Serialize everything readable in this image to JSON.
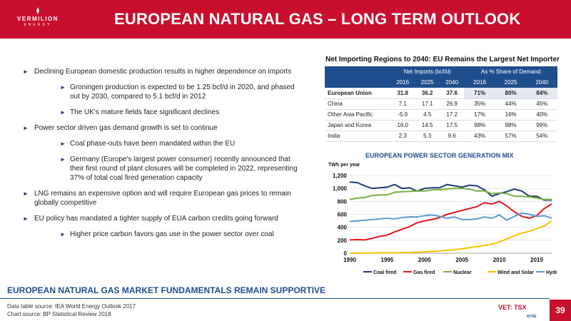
{
  "brand": {
    "name": "VERMILION",
    "sub": "ENERGY"
  },
  "title": "EUROPEAN NATURAL GAS – LONG TERM OUTLOOK",
  "bullets": [
    {
      "level": 1,
      "text": "Declining European domestic production results in higher dependence on imports"
    },
    {
      "level": 2,
      "text": "Groningen production is expected to be 1.25 bcf/d in 2020, and phased out by 2030, compared to 5.1 bcf/d in 2012"
    },
    {
      "level": 2,
      "text": "The UK's mature fields face significant declines"
    },
    {
      "level": 1,
      "text": "Power sector driven gas demand growth is set to continue"
    },
    {
      "level": 2,
      "text": "Coal phase-outs have been mandated within the EU"
    },
    {
      "level": 2,
      "text": "Germany (Europe's largest power consumer) recently announced that their first round of plant closures will be completed in 2022, representing 37% of total coal fired generation capacity"
    },
    {
      "level": 1,
      "text": "LNG remains an expensive option and will require European gas prices to remain globally competitive"
    },
    {
      "level": 1,
      "text": "EU policy has mandated a tighter supply of EUA carbon credits going forward"
    },
    {
      "level": 2,
      "text": "Higher price carbon favors gas use in the power sector over coal"
    }
  ],
  "table": {
    "title": "Net Importing Regions to 2040: EU Remains the Largest Net Importer",
    "group_headers": [
      "Net Imports (bcf/d)",
      "As % Share of Demand"
    ],
    "years": [
      "2016",
      "2025",
      "2040",
      "2016",
      "2025",
      "2040"
    ],
    "rows": [
      {
        "region": "European Union",
        "values": [
          "31.8",
          "36.2",
          "37.6",
          "71%",
          "80%",
          "84%"
        ]
      },
      {
        "region": "China",
        "values": [
          "7.1",
          "17.1",
          "26.9",
          "35%",
          "44%",
          "45%"
        ]
      },
      {
        "region": "Other Asia Pacific",
        "values": [
          "-5.0",
          "4.5",
          "17.2",
          "17%",
          "16%",
          "40%"
        ]
      },
      {
        "region": "Japan and Korea",
        "values": [
          "16.0",
          "14.5",
          "17.5",
          "98%",
          "98%",
          "99%"
        ]
      },
      {
        "region": "India",
        "values": [
          "2.3",
          "5.3",
          "9.6",
          "43%",
          "57%",
          "54%"
        ]
      }
    ]
  },
  "chart_data": {
    "type": "line",
    "title": "EUROPEAN POWER SECTOR GENERATION MIX",
    "ylabel": "TWh per year",
    "ylim": [
      0,
      1200
    ],
    "yticks": [
      "0",
      "200",
      "400",
      "600",
      "800",
      "1,000",
      "1,200"
    ],
    "xlim": [
      1990,
      2017
    ],
    "xticks": [
      "1990",
      "1995",
      "2000",
      "2005",
      "2010",
      "2015"
    ],
    "grid": true,
    "legend": "bottom",
    "x": [
      1990,
      1991,
      1992,
      1993,
      1994,
      1995,
      1996,
      1997,
      1998,
      1999,
      2000,
      2001,
      2002,
      2003,
      2004,
      2005,
      2006,
      2007,
      2008,
      2009,
      2010,
      2011,
      2012,
      2013,
      2014,
      2015,
      2016,
      2017
    ],
    "series": [
      {
        "name": "Coal fired",
        "color": "#1f3b78",
        "values": [
          1100,
          1090,
          1040,
          1000,
          1010,
          1020,
          1060,
          1000,
          1010,
          960,
          1000,
          1010,
          1010,
          1060,
          1040,
          1020,
          1050,
          1040,
          980,
          880,
          920,
          950,
          990,
          960,
          880,
          880,
          820,
          820
        ]
      },
      {
        "name": "Gas fired",
        "color": "#e8151b",
        "values": [
          205,
          210,
          205,
          230,
          260,
          280,
          330,
          370,
          410,
          470,
          500,
          520,
          550,
          600,
          630,
          660,
          690,
          720,
          780,
          760,
          800,
          730,
          640,
          570,
          540,
          580,
          690,
          760
        ]
      },
      {
        "name": "Nuclear",
        "color": "#76b043",
        "values": [
          830,
          850,
          860,
          890,
          900,
          900,
          940,
          950,
          955,
          960,
          960,
          980,
          980,
          990,
          1000,
          1000,
          990,
          960,
          960,
          920,
          930,
          920,
          880,
          880,
          870,
          850,
          830,
          830
        ]
      },
      {
        "name": "Wind and Solar",
        "color": "#f5c300",
        "values": [
          1,
          2,
          3,
          4,
          5,
          6,
          7,
          10,
          13,
          16,
          22,
          28,
          35,
          45,
          55,
          70,
          85,
          100,
          120,
          140,
          175,
          220,
          270,
          310,
          340,
          380,
          420,
          500
        ]
      },
      {
        "name": "Hydro",
        "color": "#5b9bd5",
        "values": [
          490,
          500,
          510,
          520,
          530,
          540,
          530,
          550,
          560,
          560,
          580,
          590,
          570,
          540,
          560,
          520,
          520,
          530,
          560,
          540,
          590,
          510,
          570,
          620,
          600,
          570,
          580,
          540
        ]
      }
    ]
  },
  "footer": {
    "banner": "EUROPEAN NATURAL GAS MARKET FUNDAMENTALS REMAIN SUPPORTIVE",
    "source1": "Data table source: IEA World Energy Outlook 2017",
    "source2": "Chart source: BP Statistical Review 2018",
    "page": "39",
    "tsx": "VET: TSX",
    "nyse": "NYSE"
  },
  "colors": {
    "brand_red": "#c8102e",
    "navy": "#1f4e8c"
  }
}
